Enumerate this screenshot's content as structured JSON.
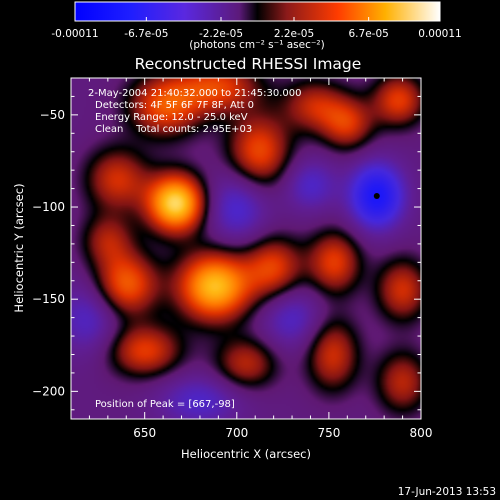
{
  "chart_data": {
    "type": "heatmap",
    "title": "Reconstructed RHESSI Image",
    "xlabel": "Heliocentric X (arcsec)",
    "ylabel": "Heliocentric Y (arcsec)",
    "xlim": [
      610,
      800
    ],
    "ylim": [
      -215,
      -30
    ],
    "xticks": [
      650,
      700,
      750,
      800
    ],
    "yticks": [
      -50,
      -100,
      -150,
      -200
    ],
    "colorbar": {
      "min": -0.00011,
      "max": 0.00011,
      "tick_values": [
        -0.00011,
        -6.7e-05,
        -2.2e-05,
        2.2e-05,
        6.7e-05,
        0.00011
      ],
      "tick_labels": [
        "-0.00011",
        "-6.7e-05",
        "-2.2e-05",
        "2.2e-05",
        "6.7e-05",
        "0.00011"
      ],
      "unit_label": "(photons cm⁻² s⁻¹ asec⁻²)"
    },
    "annotations": [
      "2-May-2004 21:40:32.000 to 21:45:30.000",
      "Detectors: 4F 5F 6F 7F 8F, Att 0",
      "Energy Range: 12.0 - 25.0 keV",
      "Clean    Total counts: 2.95E+03"
    ],
    "peak_label": "Position of Peak = [667,-98]",
    "peak": [
      667,
      -98
    ],
    "min_marker": [
      776,
      -94
    ],
    "sources": [
      {
        "x": 661,
        "y": -45,
        "v": 0.55,
        "sx": 14,
        "sy": 12
      },
      {
        "x": 690,
        "y": -35,
        "v": 0.5,
        "sx": 16,
        "sy": 10
      },
      {
        "x": 712,
        "y": -70,
        "v": 0.55,
        "sx": 12,
        "sy": 14
      },
      {
        "x": 635,
        "y": -85,
        "v": 0.45,
        "sx": 12,
        "sy": 12
      },
      {
        "x": 667,
        "y": -98,
        "v": 1.0,
        "sx": 11,
        "sy": 11
      },
      {
        "x": 742,
        "y": -45,
        "v": 0.4,
        "sx": 12,
        "sy": 10
      },
      {
        "x": 760,
        "y": -55,
        "v": 0.45,
        "sx": 10,
        "sy": 10
      },
      {
        "x": 788,
        "y": -42,
        "v": 0.5,
        "sx": 10,
        "sy": 10
      },
      {
        "x": 688,
        "y": -143,
        "v": 0.9,
        "sx": 14,
        "sy": 13
      },
      {
        "x": 640,
        "y": -142,
        "v": 0.6,
        "sx": 12,
        "sy": 12
      },
      {
        "x": 720,
        "y": -133,
        "v": 0.5,
        "sx": 11,
        "sy": 12
      },
      {
        "x": 753,
        "y": -130,
        "v": 0.5,
        "sx": 10,
        "sy": 12
      },
      {
        "x": 790,
        "y": -145,
        "v": 0.45,
        "sx": 10,
        "sy": 12
      },
      {
        "x": 650,
        "y": -178,
        "v": 0.5,
        "sx": 14,
        "sy": 10
      },
      {
        "x": 705,
        "y": -185,
        "v": 0.4,
        "sx": 12,
        "sy": 10
      },
      {
        "x": 752,
        "y": -180,
        "v": 0.45,
        "sx": 10,
        "sy": 14
      },
      {
        "x": 790,
        "y": -195,
        "v": 0.4,
        "sx": 10,
        "sy": 12
      },
      {
        "x": 630,
        "y": -118,
        "v": 0.35,
        "sx": 10,
        "sy": 10
      },
      {
        "x": 776,
        "y": -94,
        "v": -0.75,
        "sx": 10,
        "sy": 12
      },
      {
        "x": 700,
        "y": -100,
        "v": -0.35,
        "sx": 12,
        "sy": 14
      },
      {
        "x": 620,
        "y": -160,
        "v": -0.3,
        "sx": 12,
        "sy": 14
      },
      {
        "x": 730,
        "y": -160,
        "v": -0.3,
        "sx": 12,
        "sy": 12
      },
      {
        "x": 680,
        "y": -205,
        "v": -0.3,
        "sx": 16,
        "sy": 10
      },
      {
        "x": 740,
        "y": -88,
        "v": -0.3,
        "sx": 10,
        "sy": 10
      }
    ]
  },
  "footer": {
    "timestamp": "17-Jun-2013 13:53"
  }
}
